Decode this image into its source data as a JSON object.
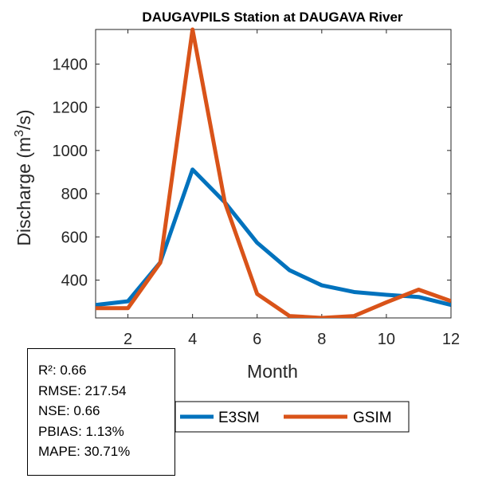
{
  "chart_data": {
    "type": "line",
    "title": "DAUGAVPILS  Station at  DAUGAVA  River",
    "xlabel": "Month",
    "ylabel_main": "Discharge (m",
    "ylabel_sup": "3",
    "ylabel_end": "/s)",
    "xlim": [
      1,
      12
    ],
    "ylim": [
      225,
      1560
    ],
    "xticks": [
      2,
      4,
      6,
      8,
      10,
      12
    ],
    "yticks": [
      400,
      600,
      800,
      1000,
      1200,
      1400
    ],
    "x": [
      1,
      2,
      3,
      4,
      5,
      6,
      7,
      8,
      9,
      10,
      11,
      12
    ],
    "series": [
      {
        "name": "E3SM",
        "color": "#0072BD",
        "values": [
          285,
          302,
          482,
          912,
          760,
          573,
          446,
          376,
          345,
          332,
          322,
          285
        ]
      },
      {
        "name": "GSIM",
        "color": "#D95319",
        "values": [
          270,
          270,
          480,
          1560,
          760,
          336,
          234,
          225,
          234,
          297,
          356,
          303
        ]
      }
    ]
  },
  "stats": {
    "r2": "R²: 0.66",
    "rmse": "RMSE: 217.54",
    "nse": "NSE: 0.66",
    "pbias": "PBIAS: 1.13%",
    "mape": "MAPE: 30.71%"
  }
}
